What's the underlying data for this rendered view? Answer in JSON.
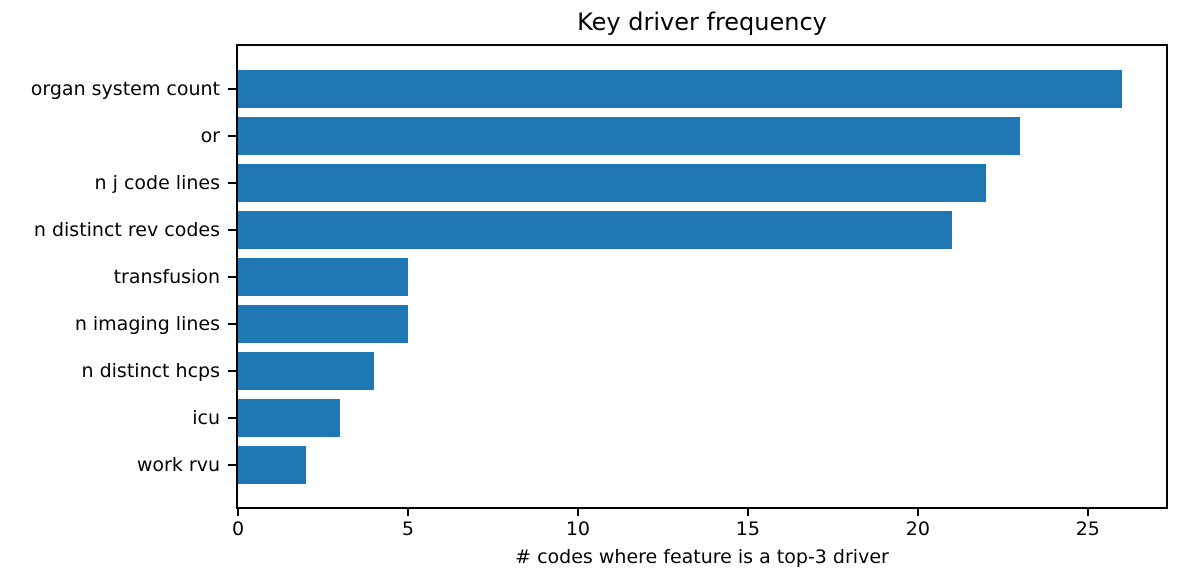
{
  "chart_data": {
    "type": "bar",
    "orientation": "horizontal",
    "title": "Key driver frequency",
    "xlabel": "# codes where feature is a top-3 driver",
    "ylabel": "",
    "categories": [
      "organ system count",
      "or",
      "n j code lines",
      "n distinct rev codes",
      "transfusion",
      "n imaging lines",
      "n distinct hcps",
      "icu",
      "work rvu"
    ],
    "values": [
      26,
      23,
      22,
      21,
      5,
      5,
      4,
      3,
      2
    ],
    "xlim": [
      0,
      27.3
    ],
    "xticks": [
      0,
      5,
      10,
      15,
      20,
      25
    ],
    "grid": false,
    "legend_position": "none",
    "colors": {
      "bar": "#1f77b4",
      "spine": "#000000",
      "text": "#000000",
      "background": "#ffffff"
    }
  }
}
